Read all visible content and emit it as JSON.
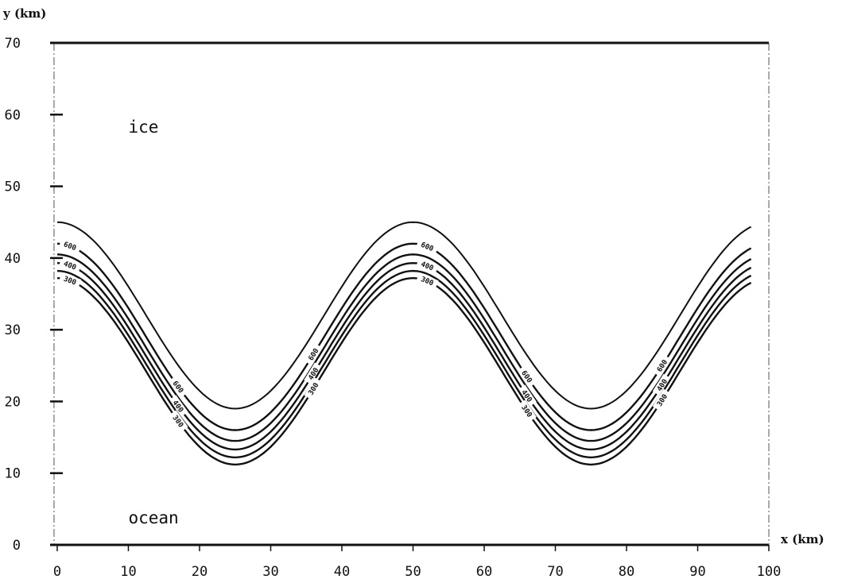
{
  "chart_data": {
    "type": "line",
    "title": "",
    "xlabel": "x (km)",
    "ylabel": "y (km)",
    "xlim": [
      -1,
      100
    ],
    "ylim": [
      0,
      70
    ],
    "xticks": [
      "0",
      "10",
      "20",
      "30",
      "40",
      "50",
      "60",
      "70",
      "80",
      "90",
      "100"
    ],
    "yticks": [
      "0",
      "10",
      "20",
      "30",
      "40",
      "50",
      "60",
      "70"
    ],
    "grid": false,
    "region_labels": [
      {
        "text": "ice",
        "x": 10,
        "y": 57.5
      },
      {
        "text": "ocean",
        "x": 10,
        "y": 3
      }
    ],
    "contours": {
      "x_range": [
        0,
        97.5
      ],
      "wavelength_km": 50,
      "x_at_maximum": [
        0,
        50
      ],
      "curves": [
        {
          "y_max": 45.0,
          "y_min": 19.0,
          "label": ""
        },
        {
          "y_max": 42.0,
          "y_min": 16.0,
          "label": "600"
        },
        {
          "y_max": 40.5,
          "y_min": 14.5,
          "label": ""
        },
        {
          "y_max": 39.3,
          "y_min": 13.3,
          "label": "400"
        },
        {
          "y_max": 38.2,
          "y_min": 12.2,
          "label": ""
        },
        {
          "y_max": 37.2,
          "y_min": 11.2,
          "label": "300"
        }
      ]
    }
  }
}
